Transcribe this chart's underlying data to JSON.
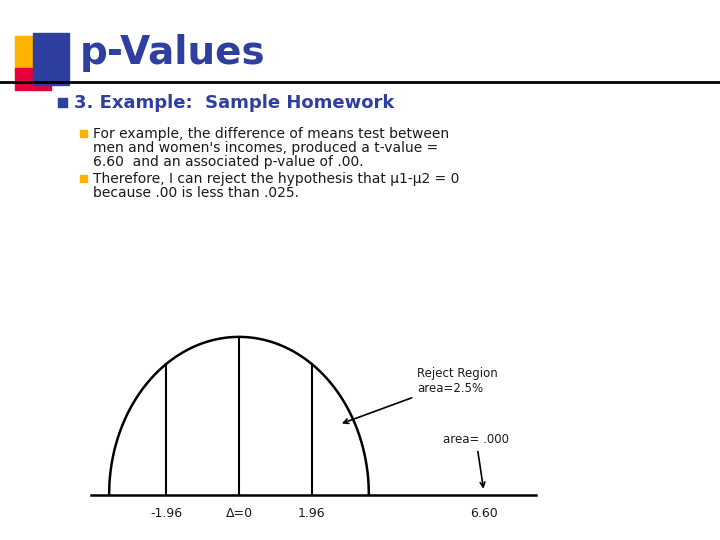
{
  "title": "p-Values",
  "title_color": "#2E3FA0",
  "background_color": "#FFFFFF",
  "bullet1": "3. Example:  Sample Homework",
  "bullet1_color": "#2E3FA0",
  "bullet2a_line1": "For example, the difference of means test between",
  "bullet2a_line2": "men and women's incomes, produced a t-value =",
  "bullet2a_line3": "6.60  and an associated p-value of .00.",
  "bullet2b_line1": "Therefore, I can reject the hypothesis that μ1-μ2 = 0",
  "bullet2b_line2": "because .00 is less than .025.",
  "text_color": "#1a1a1a",
  "curve_color": "#000000",
  "line_color": "#000000",
  "x_labels": [
    "-1.96",
    "Δ=0",
    "1.96",
    "6.60"
  ],
  "x_positions": [
    -1.96,
    0.0,
    1.96,
    6.6
  ],
  "vlines": [
    -1.96,
    0.0,
    1.96,
    6.6
  ],
  "reject_label": "Reject Region\narea=2.5%",
  "area_label": "area= .000",
  "deco_yellow": "#FFB300",
  "deco_red": "#E8003A",
  "deco_blue": "#2E3FA0",
  "header_line_color": "#000000"
}
